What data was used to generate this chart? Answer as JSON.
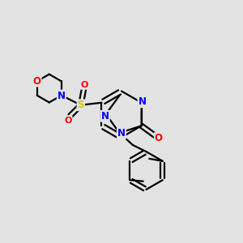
{
  "background_color": "#e3e3e3",
  "bond_color": "#000000",
  "bond_width": 1.6,
  "atom_colors": {
    "N": "#0000ff",
    "O": "#ff0000",
    "S": "#cccc00",
    "C": "#000000"
  },
  "bg": "#e3e3e3"
}
